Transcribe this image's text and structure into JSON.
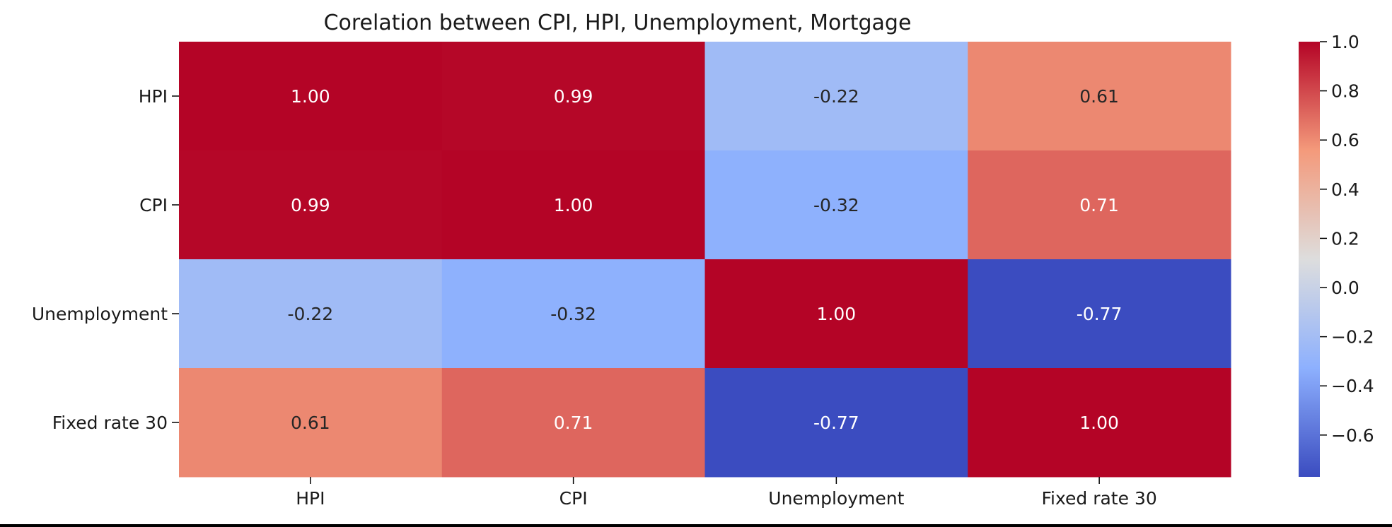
{
  "chart_data": {
    "type": "heatmap",
    "title": "Corelation between CPI, HPI, Unemployment, Mortgage",
    "x_labels": [
      "HPI",
      "CPI",
      "Unemployment",
      "Fixed rate 30"
    ],
    "y_labels": [
      "HPI",
      "CPI",
      "Unemployment",
      "Fixed rate 30"
    ],
    "values": [
      [
        1.0,
        0.99,
        -0.22,
        0.61
      ],
      [
        0.99,
        1.0,
        -0.32,
        0.71
      ],
      [
        -0.22,
        -0.32,
        1.0,
        -0.77
      ],
      [
        0.61,
        0.71,
        -0.77,
        1.0
      ]
    ],
    "annotations": [
      [
        "1.00",
        "0.99",
        "-0.22",
        "0.61"
      ],
      [
        "0.99",
        "1.00",
        "-0.32",
        "0.71"
      ],
      [
        "-0.22",
        "-0.32",
        "1.00",
        "-0.77"
      ],
      [
        "0.61",
        "0.71",
        "-0.77",
        "1.00"
      ]
    ],
    "colormap": "coolwarm",
    "colorbar": {
      "range": [
        -0.77,
        1.0
      ],
      "ticks": [
        1.0,
        0.8,
        0.6,
        0.4,
        0.2,
        0.0,
        -0.2,
        -0.4,
        -0.6
      ],
      "tick_labels": [
        "1.0",
        "0.8",
        "0.6",
        "0.4",
        "0.2",
        "0.0",
        "−0.2",
        "−0.4",
        "−0.6"
      ],
      "placement": "right"
    },
    "grid": false
  }
}
